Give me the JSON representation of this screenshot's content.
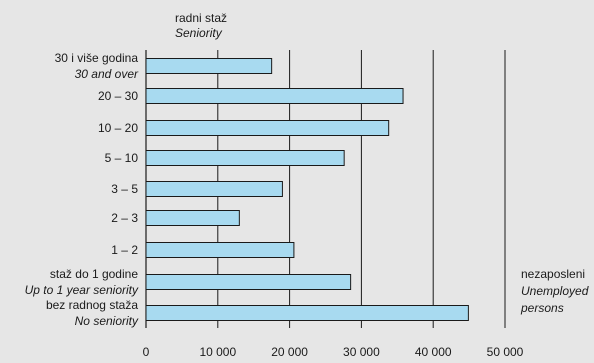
{
  "chart_data": {
    "type": "bar",
    "orientation": "horizontal",
    "title_lines": [
      "radni staž",
      "Seniority"
    ],
    "value_label_lines": [
      "nezaposleni",
      "Unemployed",
      "persons"
    ],
    "categories": [
      {
        "lines": [
          "30 i više godina",
          "30 and over"
        ]
      },
      {
        "lines": [
          "20 – 30"
        ]
      },
      {
        "lines": [
          "10 – 20"
        ]
      },
      {
        "lines": [
          "5 – 10"
        ]
      },
      {
        "lines": [
          "3 – 5"
        ]
      },
      {
        "lines": [
          "2 – 3"
        ]
      },
      {
        "lines": [
          "1 – 2"
        ]
      },
      {
        "lines": [
          "staž do 1 godine",
          "Up to 1 year seniority"
        ]
      },
      {
        "lines": [
          "bez radnog staža",
          "No seniority"
        ]
      }
    ],
    "values": [
      17500,
      35800,
      33800,
      27600,
      19000,
      13000,
      20600,
      28500,
      44900
    ],
    "xlim": [
      0,
      50000
    ],
    "xticks": [
      {
        "value": 0,
        "label": "0"
      },
      {
        "value": 10000,
        "label": "10 000"
      },
      {
        "value": 20000,
        "label": "20 000"
      },
      {
        "value": 30000,
        "label": "30 000"
      },
      {
        "value": 40000,
        "label": "40 000"
      },
      {
        "value": 50000,
        "label": "50 000"
      }
    ],
    "grid": true,
    "colors": {
      "bar": "#a8daf0",
      "bar_edge": "#1a1a1a",
      "background": "#e6e6e6",
      "axis": "#1a1a1a"
    }
  }
}
